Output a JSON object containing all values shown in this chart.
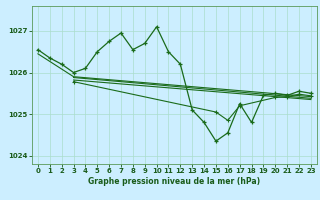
{
  "title": "Graphe pression niveau de la mer (hPa)",
  "background_color": "#cceeff",
  "grid_color": "#aaddcc",
  "line_color": "#1a6b1a",
  "ylim": [
    1023.8,
    1027.6
  ],
  "yticks": [
    1024,
    1025,
    1026,
    1027
  ],
  "xlim": [
    -0.5,
    23.5
  ],
  "xticks": [
    0,
    1,
    2,
    3,
    4,
    5,
    6,
    7,
    8,
    9,
    10,
    11,
    12,
    13,
    14,
    15,
    16,
    17,
    18,
    19,
    20,
    21,
    22,
    23
  ],
  "main_x": [
    0,
    1,
    2,
    3,
    4,
    5,
    6,
    7,
    8,
    9,
    10,
    11,
    12,
    13,
    14,
    15,
    16,
    17,
    18,
    19,
    20,
    21,
    22,
    23
  ],
  "main_y": [
    1026.55,
    1026.35,
    1026.2,
    1026.0,
    1026.1,
    1026.5,
    1026.75,
    1026.95,
    1026.55,
    1026.7,
    1027.1,
    1026.5,
    1026.2,
    1025.1,
    1024.8,
    1024.35,
    1024.55,
    1025.25,
    1024.8,
    1025.45,
    1025.5,
    1025.45,
    1025.55,
    1025.5
  ],
  "line2_x": [
    0,
    3,
    23
  ],
  "line2_y": [
    1026.45,
    1025.9,
    1025.42
  ],
  "line3_x": [
    3,
    23
  ],
  "line3_y": [
    1025.88,
    1025.38
  ],
  "line4_x": [
    3,
    23
  ],
  "line4_y": [
    1025.82,
    1025.35
  ],
  "line5_x": [
    3,
    15,
    16,
    17,
    20,
    21,
    22,
    23
  ],
  "line5_y": [
    1025.78,
    1025.05,
    1024.85,
    1025.2,
    1025.4,
    1025.42,
    1025.48,
    1025.44
  ]
}
